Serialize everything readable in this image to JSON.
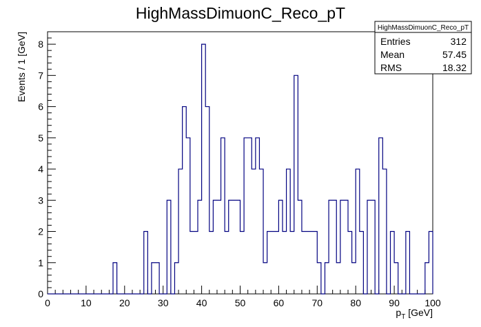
{
  "chart_data": {
    "type": "bar",
    "title": "HighMassDimuonC_Reco_pT",
    "xlabel_main": "p",
    "xlabel_sub": "T",
    "xlabel_unit": " [GeV]",
    "ylabel": "Events / 1 [GeV]",
    "xlim": [
      0,
      100
    ],
    "ylim": [
      0,
      8.4
    ],
    "x_ticks": [
      0,
      10,
      20,
      30,
      40,
      50,
      60,
      70,
      80,
      90,
      100
    ],
    "y_ticks": [
      0,
      1,
      2,
      3,
      4,
      5,
      6,
      7,
      8
    ],
    "bin_width": 1,
    "bin_start": 0,
    "values": [
      0,
      0,
      0,
      0,
      0,
      0,
      0,
      0,
      0,
      0,
      0,
      0,
      0,
      0,
      0,
      0,
      0,
      1,
      0,
      0,
      0,
      0,
      0,
      0,
      0,
      2,
      0,
      1,
      1,
      0,
      0,
      3,
      0,
      1,
      4,
      6,
      5,
      2,
      2,
      3,
      8,
      6,
      2,
      3,
      3,
      5,
      2,
      3,
      3,
      3,
      2,
      5,
      5,
      4,
      5,
      4,
      1,
      2,
      2,
      2,
      3,
      2,
      4,
      2,
      7,
      3,
      2,
      2,
      2,
      2,
      1,
      0,
      1,
      3,
      3,
      1,
      3,
      3,
      2,
      1,
      4,
      2,
      0,
      3,
      3,
      0,
      5,
      4,
      0,
      2,
      1,
      0,
      0,
      2,
      0,
      0,
      0,
      0,
      1,
      2
    ],
    "line_color": "#000080",
    "legend": "top-right",
    "stats": {
      "name": "HighMassDimuonC_Reco_pT",
      "rows": [
        {
          "label": "Entries",
          "value": "312"
        },
        {
          "label": "Mean",
          "value": "57.45"
        },
        {
          "label": "RMS",
          "value": "18.32"
        }
      ]
    }
  }
}
